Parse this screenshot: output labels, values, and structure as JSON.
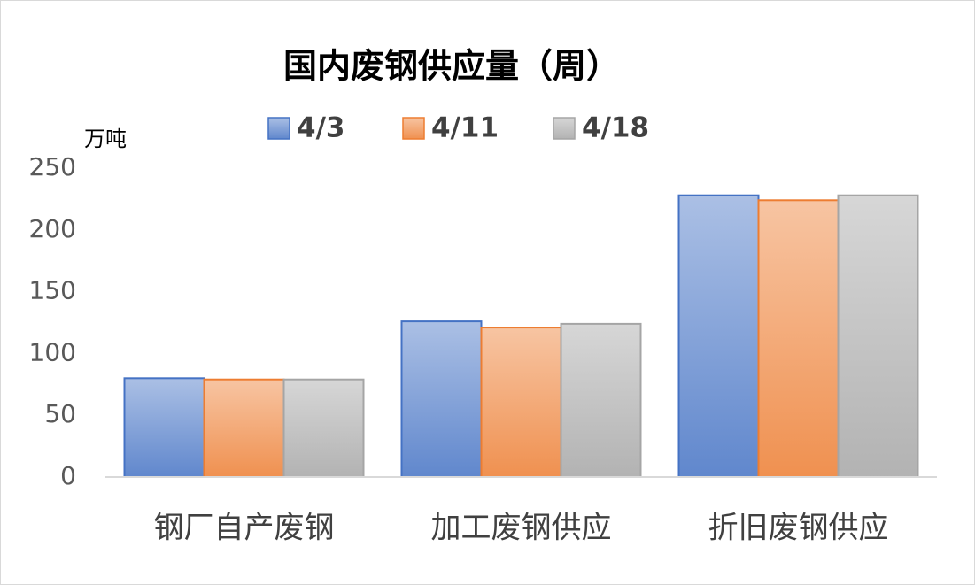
{
  "chart_data": {
    "type": "bar",
    "title": "国内废钢供应量（周）",
    "y_unit": "万吨",
    "categories": [
      "钢厂自产废钢",
      "加工废钢供应",
      "折旧废钢供应"
    ],
    "series": [
      {
        "name": "4/3",
        "color": "#4472c4",
        "values": [
          80,
          126,
          228
        ]
      },
      {
        "name": "4/11",
        "color": "#ed7d31",
        "values": [
          79,
          121,
          224
        ]
      },
      {
        "name": "4/18",
        "color": "#a5a5a5",
        "values": [
          79,
          124,
          228
        ]
      }
    ],
    "ylim": [
      0,
      250
    ],
    "yticks": [
      0,
      50,
      100,
      150,
      200,
      250
    ],
    "grid": false,
    "legend": "top"
  }
}
